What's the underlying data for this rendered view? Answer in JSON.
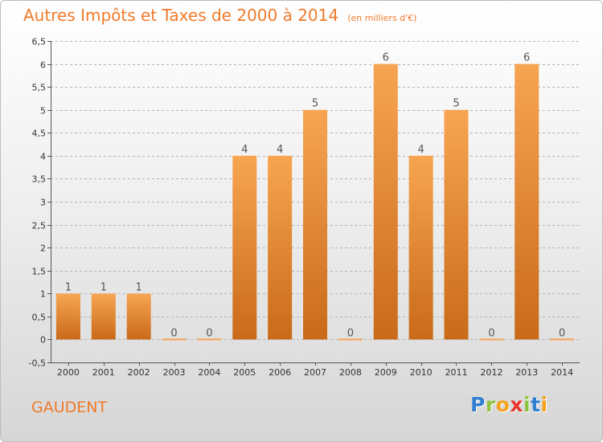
{
  "title": "Autres Impôts et Taxes de 2000 à 2014",
  "unit": "(en milliers d'€)",
  "commune": "GAUDENT",
  "logo": {
    "letters": [
      {
        "ch": "P",
        "color": "#2f7fd1"
      },
      {
        "ch": "r",
        "color": "#8cc43c"
      },
      {
        "ch": "o",
        "color": "#f4a21c"
      },
      {
        "ch": "x",
        "color": "#e8362b"
      },
      {
        "ch": "i",
        "color": "#8cc43c"
      },
      {
        "ch": "t",
        "color": "#2f7fd1"
      },
      {
        "ch": "i",
        "color": "#f4a21c"
      }
    ]
  },
  "colors": {
    "title": "#f07a2a",
    "bar_light": "#f7a552",
    "bar_dark": "#c96a19",
    "grid": "#b3b3b3",
    "axis_text": "#333333"
  },
  "chart_data": {
    "type": "bar",
    "categories": [
      "2000",
      "2001",
      "2002",
      "2003",
      "2004",
      "2005",
      "2006",
      "2007",
      "2008",
      "2009",
      "2010",
      "2011",
      "2012",
      "2013",
      "2014"
    ],
    "values": [
      1,
      1,
      1,
      0,
      0,
      4,
      4,
      5,
      0,
      6,
      4,
      5,
      0,
      6,
      0
    ],
    "data_labels": [
      "1",
      "1",
      "1",
      "0",
      "0",
      "4",
      "4",
      "5",
      "0",
      "6",
      "4",
      "5",
      "0",
      "6",
      "0"
    ],
    "ylim": [
      -0.5,
      6.5
    ],
    "yticks": [
      "-0,5",
      "0",
      "0,5",
      "1",
      "1,5",
      "2",
      "2,5",
      "3",
      "3,5",
      "4",
      "4,5",
      "5",
      "5,5",
      "6",
      "6,5"
    ],
    "grid": true,
    "legend": "none"
  }
}
